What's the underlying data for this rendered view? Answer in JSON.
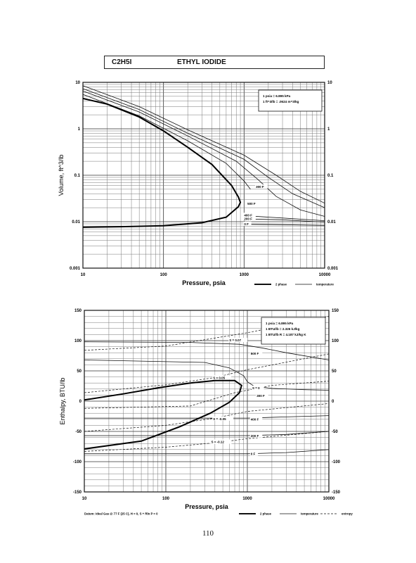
{
  "header": {
    "formula": "C2H5I",
    "name": "ETHYL IODIDE"
  },
  "page_number": "110",
  "chart_data": [
    {
      "type": "line",
      "title": "",
      "xlabel": "Pressure, psia",
      "ylabel": "Volume, ft^3/lb",
      "xscale": "log",
      "yscale": "log",
      "xlim": [
        10,
        10000
      ],
      "ylim": [
        0.001,
        10
      ],
      "x_ticks": [
        "10",
        "100",
        "1000",
        "10000"
      ],
      "y_ticks_left": [
        "0.001",
        "0.01",
        "0.1",
        "1",
        "10"
      ],
      "y_ticks_right": [
        "0.001",
        "0.01",
        "0.1",
        "1",
        "10"
      ],
      "grid": true,
      "notes": [
        "1 psia = 6.895 kPa",
        "1 ft^3/lb = .0624 m^3/kg"
      ],
      "legend": [
        "2 phase",
        "temperature"
      ],
      "two_phase": {
        "name": "2 phase",
        "points": [
          [
            10,
            0.0076
          ],
          [
            30,
            0.0078
          ],
          [
            100,
            0.0082
          ],
          [
            300,
            0.0095
          ],
          [
            600,
            0.0125
          ],
          [
            850,
            0.021
          ],
          [
            900,
            0.026
          ],
          [
            850,
            0.034
          ],
          [
            700,
            0.06
          ],
          [
            400,
            0.17
          ],
          [
            200,
            0.4
          ],
          [
            100,
            0.9
          ],
          [
            50,
            1.8
          ],
          [
            20,
            3.4
          ],
          [
            10,
            4.5
          ]
        ]
      },
      "series": [
        {
          "name": "",
          "label": "300 F",
          "points": [
            [
              10,
              5.5
            ],
            [
              50,
              1.9
            ],
            [
              200,
              0.55
            ],
            [
              600,
              0.18
            ],
            [
              1000,
              0.075
            ],
            [
              1200,
              0.05
            ]
          ]
        },
        {
          "label": "500 F",
          "points": [
            [
              10,
              6.5
            ],
            [
              50,
              2.3
            ],
            [
              200,
              0.7
            ],
            [
              800,
              0.2
            ],
            [
              1500,
              0.08
            ],
            [
              2500,
              0.035
            ],
            [
              5000,
              0.018
            ],
            [
              10000,
              0.013
            ]
          ]
        },
        {
          "label": "",
          "points": [
            [
              10,
              7.3
            ],
            [
              50,
              2.6
            ],
            [
              200,
              0.8
            ],
            [
              1000,
              0.22
            ],
            [
              2000,
              0.09
            ],
            [
              4000,
              0.04
            ],
            [
              10000,
              0.02
            ]
          ]
        },
        {
          "label": "",
          "points": [
            [
              10,
              8.5
            ],
            [
              50,
              3.0
            ],
            [
              200,
              0.95
            ],
            [
              1000,
              0.27
            ],
            [
              2500,
              0.1
            ],
            [
              5000,
              0.045
            ],
            [
              10000,
              0.025
            ]
          ]
        },
        {
          "label": "400 F",
          "points": [
            [
              1000,
              0.0135
            ],
            [
              3000,
              0.012
            ],
            [
              10000,
              0.0105
            ]
          ]
        },
        {
          "label": "200 F",
          "points": [
            [
              1000,
              0.0115
            ],
            [
              3000,
              0.011
            ],
            [
              10000,
              0.0098
            ]
          ]
        },
        {
          "label": "0 F",
          "points": [
            [
              1000,
              0.0088
            ],
            [
              3000,
              0.0086
            ],
            [
              10000,
              0.0083
            ]
          ]
        }
      ],
      "curve_labels": [
        {
          "text": "300 F",
          "at": [
            1400,
            0.055
          ]
        },
        {
          "text": "500 F",
          "at": [
            1100,
            0.024
          ]
        },
        {
          "text": "400 F",
          "at": [
            1000,
            0.0135
          ]
        },
        {
          "text": "200 F",
          "at": [
            1000,
            0.0113
          ]
        },
        {
          "text": "0 F",
          "at": [
            1000,
            0.0087
          ]
        }
      ]
    },
    {
      "type": "line",
      "title": "",
      "xlabel": "Pressure, psia",
      "ylabel": "Enthalpy, BTU/lb",
      "xscale": "log",
      "xlim": [
        10,
        10000
      ],
      "ylim": [
        -150,
        150
      ],
      "x_ticks": [
        "10",
        "100",
        "1000",
        "10000"
      ],
      "y_ticks_left": [
        "150",
        "100",
        "50",
        "0",
        "-50",
        "-100",
        "-150"
      ],
      "y_ticks_right": [
        "150",
        "100",
        "50",
        "0",
        "-50",
        "-100",
        "-150"
      ],
      "grid": true,
      "notes": [
        "1 psia = 6.895 kPa",
        "1 BTU/lb = 2.326 kJ/kg",
        "1 BTU/lb R = 4.187 kJ/kg K"
      ],
      "legend": [
        "2 phase",
        "temperature",
        "entropy"
      ],
      "footnote": "Datum: Ideal Gas @ 77 F (25 C), H = 0, S + Rln P = 0",
      "two_phase": {
        "name": "2 phase",
        "points": [
          [
            10,
            -79
          ],
          [
            50,
            -66
          ],
          [
            150,
            -42
          ],
          [
            350,
            -20
          ],
          [
            600,
            -2
          ],
          [
            800,
            14
          ],
          [
            850,
            26
          ],
          [
            700,
            34
          ],
          [
            400,
            34
          ],
          [
            200,
            30
          ],
          [
            80,
            22
          ],
          [
            30,
            12
          ],
          [
            10,
            2
          ]
        ]
      },
      "series": [
        {
          "label": "500 F",
          "points": [
            [
              10,
              98
            ],
            [
              200,
              97
            ],
            [
              800,
              94
            ],
            [
              1500,
              88
            ],
            [
              3000,
              80
            ],
            [
              10000,
              68
            ]
          ]
        },
        {
          "label": "300 F",
          "points": [
            [
              10,
              68
            ],
            [
              300,
              64
            ],
            [
              600,
              55
            ],
            [
              900,
              42
            ],
            [
              1000,
              32
            ],
            [
              1200,
              25
            ],
            [
              2000,
              21
            ],
            [
              5000,
              19
            ],
            [
              10000,
              18
            ]
          ]
        },
        {
          "label": "400 F",
          "points": [
            [
              10,
              -28
            ],
            [
              1000,
              -28
            ],
            [
              3000,
              -26
            ],
            [
              10000,
              -24
            ]
          ]
        },
        {
          "label": "200 F",
          "points": [
            [
              10,
              -57
            ],
            [
              1000,
              -57
            ],
            [
              3000,
              -55
            ],
            [
              10000,
              -50
            ]
          ]
        },
        {
          "label": "0 F",
          "points": [
            [
              10,
              -87
            ],
            [
              1000,
              -87
            ],
            [
              3000,
              -85
            ],
            [
              10000,
              -80
            ]
          ]
        }
      ],
      "entropy_lines": [
        {
          "label": "S = 0.07",
          "points": [
            [
              10,
              84
            ],
            [
              100,
              91
            ],
            [
              1000,
              113
            ],
            [
              10000,
              140
            ]
          ]
        },
        {
          "label": "S = 0.05",
          "points": [
            [
              10,
              14
            ],
            [
              100,
              27
            ],
            [
              400,
              39
            ],
            [
              1000,
              52
            ],
            [
              10000,
              78
            ]
          ]
        },
        {
          "label": "S = 0",
          "points": [
            [
              10,
              -12
            ],
            [
              200,
              -8
            ],
            [
              700,
              14
            ],
            [
              2000,
              26
            ],
            [
              10000,
              33
            ]
          ]
        },
        {
          "label": "S = -0.05",
          "points": [
            [
              10,
              -50
            ],
            [
              100,
              -40
            ],
            [
              400,
              -28
            ],
            [
              1000,
              -17
            ],
            [
              10000,
              -4
            ]
          ]
        },
        {
          "label": "S = -0.12",
          "points": [
            [
              10,
              -83
            ],
            [
              100,
              -76
            ],
            [
              400,
              -69
            ],
            [
              1000,
              -62
            ],
            [
              10000,
              -50
            ]
          ]
        }
      ],
      "curve_labels": [
        {
          "text": "S = 0.07",
          "at": [
            600,
            100
          ]
        },
        {
          "text": "500 F",
          "at": [
            1100,
            78
          ]
        },
        {
          "text": "S = 0.05",
          "at": [
            380,
            38
          ]
        },
        {
          "text": "S = 0",
          "at": [
            1150,
            21
          ]
        },
        {
          "text": "300 F",
          "at": [
            1300,
            8
          ]
        },
        {
          "text": "S = -0.05",
          "at": [
            380,
            -30
          ]
        },
        {
          "text": "400 F",
          "at": [
            1100,
            -31
          ]
        },
        {
          "text": "200 F",
          "at": [
            1100,
            -58
          ]
        },
        {
          "text": "S = -0.12",
          "at": [
            360,
            -68
          ]
        },
        {
          "text": "0 F",
          "at": [
            1100,
            -88
          ]
        }
      ]
    }
  ]
}
